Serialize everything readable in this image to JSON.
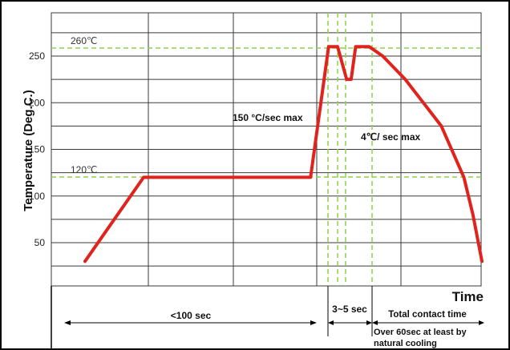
{
  "chart_data": {
    "type": "line",
    "title": "",
    "ylabel": "Temperature (Deg.C.)",
    "xlabel": "Time",
    "ylim": [
      0,
      280
    ],
    "yticks": [
      50,
      100,
      150,
      200,
      250
    ],
    "grid": true,
    "series": [
      {
        "x": [
          0,
          13,
          50,
          54,
          56,
          58,
          59,
          60,
          61,
          62,
          63,
          66,
          71,
          79,
          84,
          86,
          88
        ],
        "values": [
          30,
          120,
          120,
          260,
          260,
          225,
          225,
          260,
          260,
          260,
          260,
          250,
          225,
          175,
          120,
          80,
          30
        ]
      }
    ],
    "reference_lines": [
      {
        "label": "260℃",
        "value": 260
      },
      {
        "label": "120℃",
        "value": 120
      }
    ],
    "annotations": {
      "ramp_rate": "150 °C/sec max",
      "cooling_rate": "4℃/ sec max"
    },
    "time_segments": [
      {
        "label": "<100 sec"
      },
      {
        "label": "3~5 sec"
      },
      {
        "label": "Total contact time",
        "note_lines": [
          "Over 60sec at least by",
          "natural cooling"
        ]
      }
    ]
  },
  "colors": {
    "curve": "#e0231c",
    "guide": "#8fd14f",
    "grid": "#3a3a3a",
    "frame": "#000000",
    "text": "#111111"
  }
}
